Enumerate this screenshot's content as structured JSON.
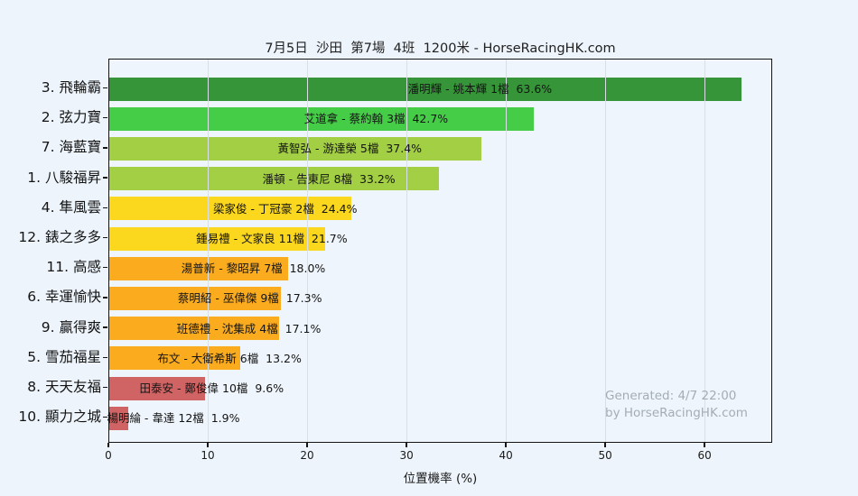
{
  "title": "7月5日  沙田  第7場  4班  1200米 - HorseRacingHK.com",
  "watermark": {
    "line1": "Generated: 4/7 22:00",
    "line2": "by HorseRacingHK.com"
  },
  "chart_data": {
    "type": "bar",
    "orientation": "horizontal",
    "title": "7月5日  沙田  第7場  4班  1200米 - HorseRacingHK.com",
    "xlabel": "位置機率 (%)",
    "ylabel": "",
    "xlim": [
      0,
      66.8
    ],
    "xticks": [
      0,
      10,
      20,
      30,
      40,
      50,
      60
    ],
    "grid": "vertical",
    "legend": "none",
    "background_color": "#edf4fb",
    "gridline_color": "#d8dfe5",
    "categories": [
      "3. 飛輪霸",
      "2. 弦力寶",
      "7. 海藍寶",
      "1. 八駿福昇",
      "4. 隼風雲",
      "12. 錶之多多",
      "11. 高感",
      "6. 幸運愉快",
      "9. 贏得爽",
      "5. 雪茄福星",
      "8. 天天友福",
      "10. 顯力之城"
    ],
    "values": [
      63.6,
      42.7,
      37.4,
      33.2,
      24.4,
      21.7,
      18.0,
      17.3,
      17.1,
      13.2,
      9.6,
      1.9
    ],
    "bars": [
      {
        "horse": "3. 飛輪霸",
        "jockey": "潘明輝",
        "trainer": "姚本輝",
        "gate": "1檔",
        "value": 63.6,
        "label": "潘明輝 - 姚本輝 1檔  63.6%",
        "color": "#369538"
      },
      {
        "horse": "2. 弦力寶",
        "jockey": "艾道拿",
        "trainer": "蔡約翰",
        "gate": "3檔",
        "value": 42.7,
        "label": "艾道拿 - 蔡約翰 3檔  42.7%",
        "color": "#46cd48"
      },
      {
        "horse": "7. 海藍寶",
        "jockey": "黃智弘",
        "trainer": "游達榮",
        "gate": "5檔",
        "value": 37.4,
        "label": "黃智弘 - 游達榮 5檔  37.4%",
        "color": "#a3cf44"
      },
      {
        "horse": "1. 八駿福昇",
        "jockey": "潘頓",
        "trainer": "告東尼",
        "gate": "8檔",
        "value": 33.2,
        "label": "潘頓 - 告東尼 8檔  33.2%",
        "color": "#a3cf44"
      },
      {
        "horse": "4. 隼風雲",
        "jockey": "梁家俊",
        "trainer": "丁冠豪",
        "gate": "2檔",
        "value": 24.4,
        "label": "梁家俊 - 丁冠豪 2檔  24.4%",
        "color": "#fbd71d"
      },
      {
        "horse": "12. 錶之多多",
        "jockey": "鍾易禮",
        "trainer": "文家良",
        "gate": "11檔",
        "value": 21.7,
        "label": "鍾易禮 - 文家良 11檔  21.7%",
        "color": "#fbd71d"
      },
      {
        "horse": "11. 高感",
        "jockey": "湯普新",
        "trainer": "黎昭昇",
        "gate": "7檔",
        "value": 18.0,
        "label": "湯普新 - 黎昭昇 7檔  18.0%",
        "color": "#fbab1e"
      },
      {
        "horse": "6. 幸運愉快",
        "jockey": "蔡明紹",
        "trainer": "巫偉傑",
        "gate": "9檔",
        "value": 17.3,
        "label": "蔡明紹 - 巫偉傑 9檔  17.3%",
        "color": "#fbab1e"
      },
      {
        "horse": "9. 贏得爽",
        "jockey": "班德禮",
        "trainer": "沈集成",
        "gate": "4檔",
        "value": 17.1,
        "label": "班德禮 - 沈集成 4檔  17.1%",
        "color": "#fbab1e"
      },
      {
        "horse": "5. 雪茄福星",
        "jockey": "布文",
        "trainer": "大衛希斯",
        "gate": "6檔",
        "value": 13.2,
        "label": "布文 - 大衛希斯 6檔  13.2%",
        "color": "#fbab1e"
      },
      {
        "horse": "8. 天天友福",
        "jockey": "田泰安",
        "trainer": "鄭俊偉",
        "gate": "10檔",
        "value": 9.6,
        "label": "田泰安 - 鄭俊偉 10檔  9.6%",
        "color": "#d06363"
      },
      {
        "horse": "10. 顯力之城",
        "jockey": "楊明綸",
        "trainer": "韋達",
        "gate": "12檔",
        "value": 1.9,
        "label": "楊明綸 - 韋達 12檔  1.9%",
        "color": "#d06363"
      }
    ]
  }
}
